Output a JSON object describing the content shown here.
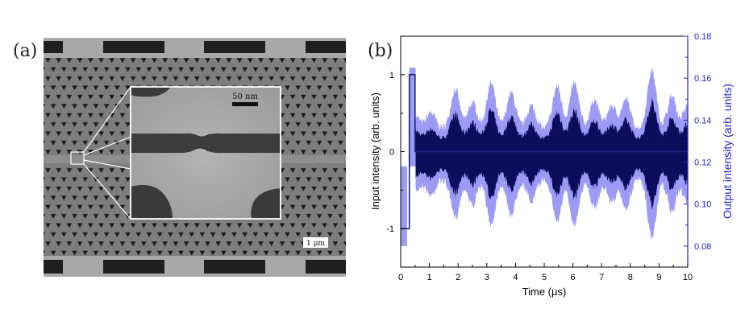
{
  "panel_a": {
    "label": "(a)",
    "scale_bar_main": "1 μm",
    "scale_bar_inset": "50 nm"
  },
  "panel_b": {
    "label": "(b)",
    "xlabel": "Time (μs)",
    "ylabel_left": "Input intensity (arb. units)",
    "ylabel_right": "Output intensity (arb. units)"
  },
  "colors": {
    "input": "#1a237e",
    "output_envelope": "#9b9bf5",
    "output_core": "#0d0d5e",
    "right_axis": "#2222cc"
  },
  "chart_data": {
    "type": "line",
    "xlabel": "Time (μs)",
    "ylabel": "Input intensity (arb. units)",
    "ylabel_right": "Output intensity (arb. units)",
    "xlim": [
      0,
      10
    ],
    "ylim": [
      -1.5,
      1.5
    ],
    "ylim_right": [
      0.07,
      0.18
    ],
    "x_ticks": [
      0,
      1,
      2,
      3,
      4,
      5,
      6,
      7,
      8,
      9,
      10
    ],
    "y_ticks_left": [
      -1,
      0,
      1
    ],
    "y_ticks_right": [
      0.08,
      0.1,
      0.12,
      0.14,
      0.16,
      0.18
    ],
    "grid": false,
    "series": [
      {
        "axis": "left",
        "x": [
          0,
          0.3,
          0.3,
          0.5,
          0.5,
          10
        ],
        "y": [
          -1,
          -1,
          1,
          1,
          0,
          0
        ]
      },
      {
        "axis": "right",
        "peaks": [
          {
            "x": 0.5,
            "amp": 0.2
          },
          {
            "x": 1.05,
            "amp": 0.25
          },
          {
            "x": 1.9,
            "amp": 0.6
          },
          {
            "x": 2.5,
            "amp": 0.4
          },
          {
            "x": 3.15,
            "amp": 0.7
          },
          {
            "x": 3.85,
            "amp": 0.55
          },
          {
            "x": 4.55,
            "amp": 0.35
          },
          {
            "x": 5.45,
            "amp": 0.65
          },
          {
            "x": 6.05,
            "amp": 0.7
          },
          {
            "x": 6.75,
            "amp": 0.45
          },
          {
            "x": 7.35,
            "amp": 0.35
          },
          {
            "x": 7.85,
            "amp": 0.45
          },
          {
            "x": 8.75,
            "amp": 0.9
          },
          {
            "x": 9.45,
            "amp": 0.5
          },
          {
            "x": 10.0,
            "amp": 0.35
          }
        ]
      }
    ]
  }
}
